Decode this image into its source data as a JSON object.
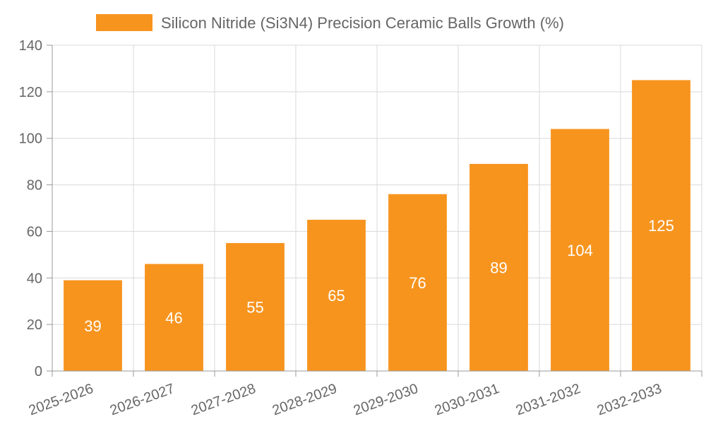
{
  "chart_data": {
    "type": "bar",
    "title": "",
    "xlabel": "",
    "ylabel": "",
    "categories": [
      "2025-2026",
      "2026-2027",
      "2027-2028",
      "2028-2029",
      "2029-2030",
      "2030-2031",
      "2031-2032",
      "2032-2033"
    ],
    "series": [
      {
        "name": "Silicon Nitride (Si3N4) Precision Ceramic Balls Growth (%)",
        "values": [
          39,
          46,
          55,
          65,
          76,
          89,
          104,
          125
        ],
        "color": "#f7941e"
      }
    ],
    "ylim": [
      0,
      140
    ],
    "yticks": [
      0,
      20,
      40,
      60,
      80,
      100,
      120,
      140
    ],
    "grid": true,
    "legend_position": "top-center",
    "data_labels": true
  }
}
